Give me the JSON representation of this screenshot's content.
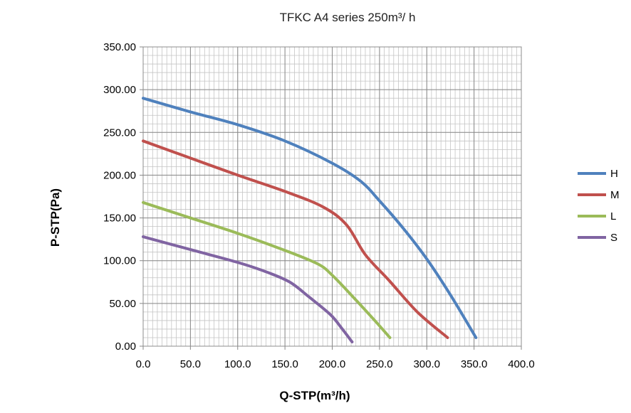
{
  "chart_data": {
    "type": "line",
    "title": "TFKC A4  series  250m³/ h",
    "xlabel": "Q-STP(m³/h)",
    "ylabel": "P-STP(Pa)",
    "xlim": [
      0,
      400
    ],
    "ylim": [
      0,
      350
    ],
    "x_ticks": [
      "0.0",
      "50.0",
      "100.0",
      "150.0",
      "200.0",
      "250.0",
      "300.0",
      "350.0",
      "400.0"
    ],
    "y_ticks": [
      "0.00",
      "50.00",
      "100.00",
      "150.00",
      "200.00",
      "250.00",
      "300.00",
      "350.00"
    ],
    "x_tick_values": [
      0,
      50,
      100,
      150,
      200,
      250,
      300,
      350,
      400
    ],
    "y_tick_values": [
      0,
      50,
      100,
      150,
      200,
      250,
      300,
      350
    ],
    "grid": true,
    "legend_position": "right",
    "series": [
      {
        "name": "H",
        "color": "#4f81bd",
        "points": [
          [
            0,
            290
          ],
          [
            50,
            274
          ],
          [
            100,
            259
          ],
          [
            150,
            240
          ],
          [
            200,
            214
          ],
          [
            230,
            193
          ],
          [
            250,
            170
          ],
          [
            275,
            138
          ],
          [
            300,
            102
          ],
          [
            325,
            60
          ],
          [
            352,
            10
          ]
        ]
      },
      {
        "name": "M",
        "color": "#c0504d",
        "points": [
          [
            0,
            240
          ],
          [
            50,
            220
          ],
          [
            100,
            200
          ],
          [
            150,
            181
          ],
          [
            190,
            163
          ],
          [
            215,
            142
          ],
          [
            235,
            107
          ],
          [
            260,
            77
          ],
          [
            290,
            40
          ],
          [
            322,
            10
          ]
        ]
      },
      {
        "name": "L",
        "color": "#9bbb59",
        "points": [
          [
            0,
            168
          ],
          [
            50,
            150
          ],
          [
            100,
            132
          ],
          [
            150,
            112
          ],
          [
            185,
            96
          ],
          [
            200,
            83
          ],
          [
            220,
            60
          ],
          [
            245,
            30
          ],
          [
            261,
            10
          ]
        ]
      },
      {
        "name": "S",
        "color": "#8064a2",
        "points": [
          [
            0,
            128
          ],
          [
            50,
            113
          ],
          [
            100,
            98
          ],
          [
            130,
            87
          ],
          [
            155,
            75
          ],
          [
            175,
            58
          ],
          [
            198,
            37
          ],
          [
            210,
            21
          ],
          [
            221,
            5
          ]
        ]
      }
    ]
  }
}
